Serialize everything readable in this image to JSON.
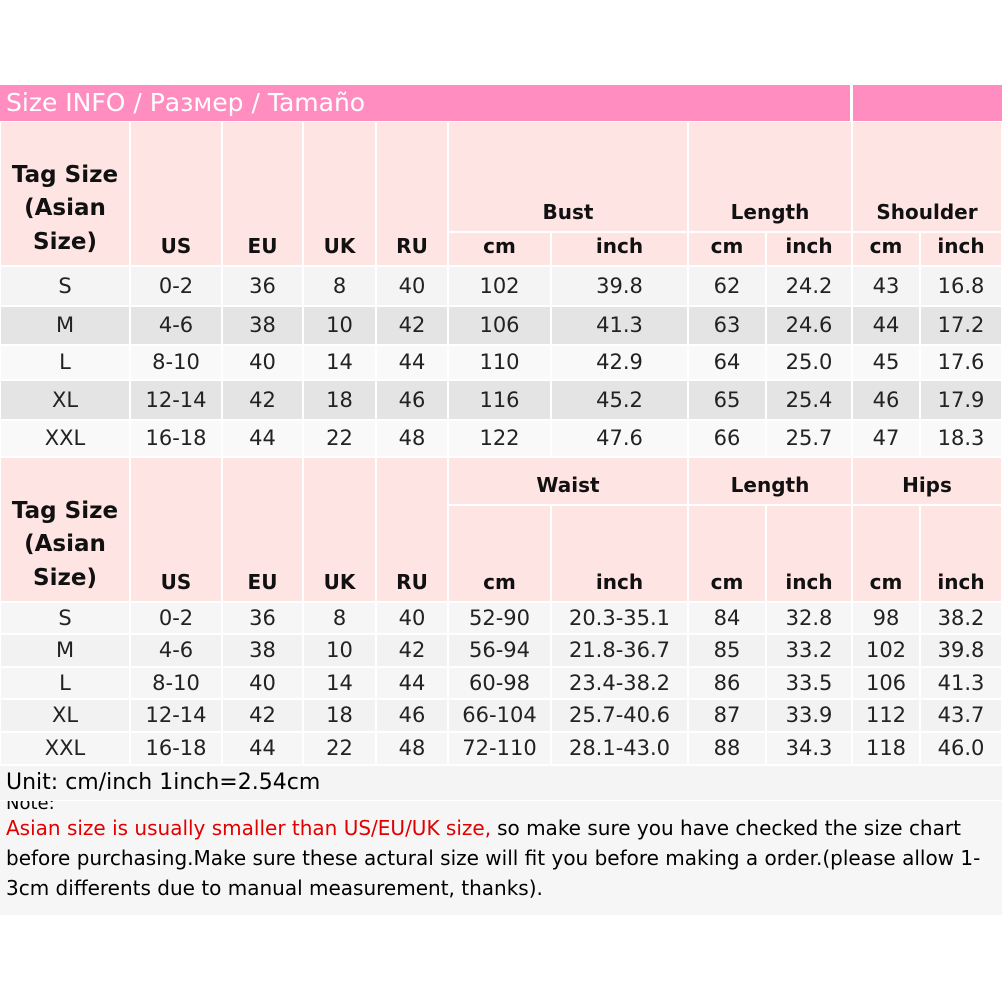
{
  "header": {
    "title": "Size INFO / Размер / Tamaño"
  },
  "tables": [
    {
      "tag_header": "Tag Size (Asian Size)",
      "columns": [
        "US",
        "EU",
        "UK",
        "RU"
      ],
      "groups": [
        {
          "name": "Bust",
          "units": [
            "cm",
            "inch"
          ]
        },
        {
          "name": "Length",
          "units": [
            "cm",
            "inch"
          ]
        },
        {
          "name": "Shoulder",
          "units": [
            "cm",
            "inch"
          ]
        }
      ],
      "rows": [
        [
          "S",
          "0-2",
          "36",
          "8",
          "40",
          "102",
          "39.8",
          "62",
          "24.2",
          "43",
          "16.8"
        ],
        [
          "M",
          "4-6",
          "38",
          "10",
          "42",
          "106",
          "41.3",
          "63",
          "24.6",
          "44",
          "17.2"
        ],
        [
          "L",
          "8-10",
          "40",
          "14",
          "44",
          "110",
          "42.9",
          "64",
          "25.0",
          "45",
          "17.6"
        ],
        [
          "XL",
          "12-14",
          "42",
          "18",
          "46",
          "116",
          "45.2",
          "65",
          "25.4",
          "46",
          "17.9"
        ],
        [
          "XXL",
          "16-18",
          "44",
          "22",
          "48",
          "122",
          "47.6",
          "66",
          "25.7",
          "47",
          "18.3"
        ]
      ]
    },
    {
      "tag_header": "Tag Size (Asian Size)",
      "columns": [
        "US",
        "EU",
        "UK",
        "RU"
      ],
      "groups": [
        {
          "name": "Waist",
          "units": [
            "cm",
            "inch"
          ]
        },
        {
          "name": "Length",
          "units": [
            "cm",
            "inch"
          ]
        },
        {
          "name": "Hips",
          "units": [
            "cm",
            "inch"
          ]
        }
      ],
      "rows": [
        [
          "S",
          "0-2",
          "36",
          "8",
          "40",
          "52-90",
          "20.3-35.1",
          "84",
          "32.8",
          "98",
          "38.2"
        ],
        [
          "M",
          "4-6",
          "38",
          "10",
          "42",
          "56-94",
          "21.8-36.7",
          "85",
          "33.2",
          "102",
          "39.8"
        ],
        [
          "L",
          "8-10",
          "40",
          "14",
          "44",
          "60-98",
          "23.4-38.2",
          "86",
          "33.5",
          "106",
          "41.3"
        ],
        [
          "XL",
          "12-14",
          "42",
          "18",
          "46",
          "66-104",
          "25.7-40.6",
          "87",
          "33.9",
          "112",
          "43.7"
        ],
        [
          "XXL",
          "16-18",
          "44",
          "22",
          "48",
          "72-110",
          "28.1-43.0",
          "88",
          "34.3",
          "118",
          "46.0"
        ]
      ]
    }
  ],
  "unit": "Unit: cm/inch 1inch=2.54cm",
  "note": {
    "label": "Note:",
    "warning": "Asian size is usually smaller than US/EU/UK size,",
    "text": "so make sure you have checked the size chart before purchasing.Make sure these actural size will fit you before making a order.(please allow 1-3cm differents due to manual measurement, thanks)."
  }
}
